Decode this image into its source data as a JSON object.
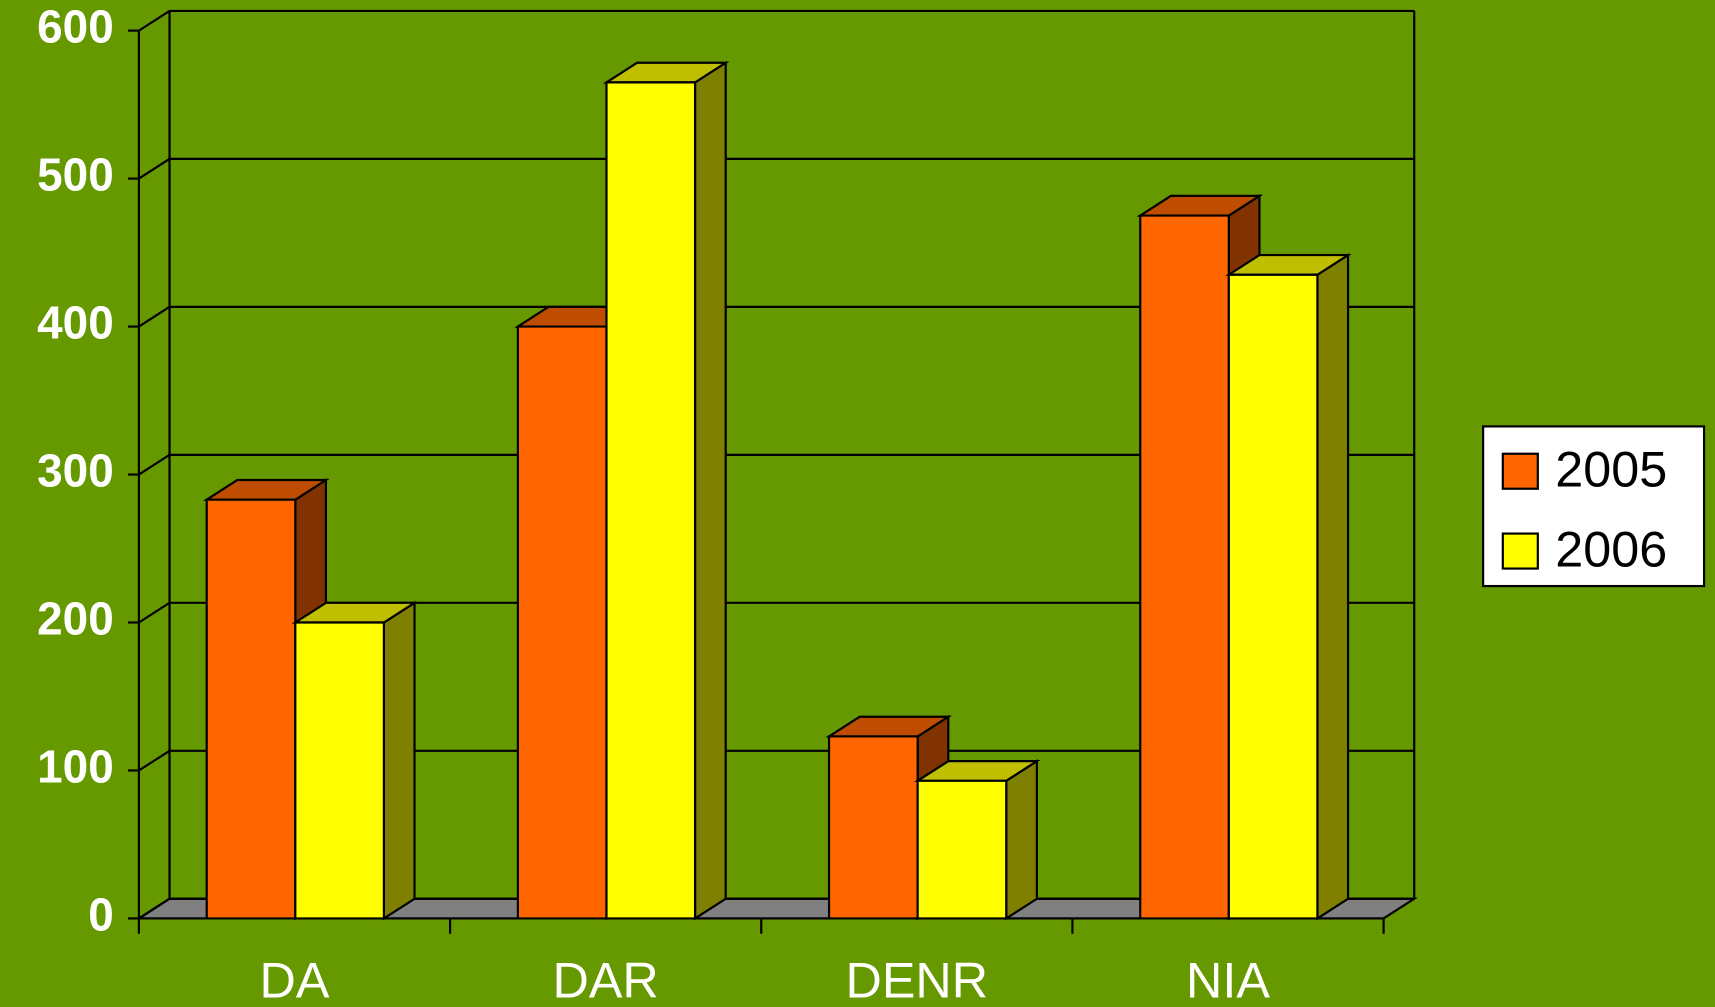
{
  "chart_data": {
    "type": "bar3d",
    "categories": [
      "DA",
      "DAR",
      "DENR",
      "NIA"
    ],
    "series": [
      {
        "name": "2005",
        "color": "#ff6600",
        "values": [
          283,
          400,
          123,
          475
        ]
      },
      {
        "name": "2006",
        "color": "#ffff00",
        "values": [
          200,
          565,
          93,
          435
        ]
      }
    ],
    "ylim": [
      0,
      600
    ],
    "yticks": [
      0,
      100,
      200,
      300,
      400,
      500,
      600
    ],
    "grid": true,
    "legend": "right"
  }
}
